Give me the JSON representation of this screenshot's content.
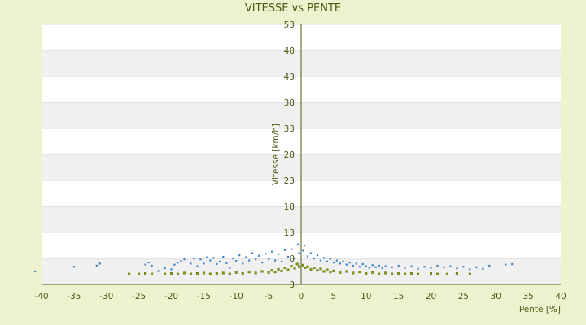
{
  "chart_data": {
    "type": "scatter",
    "title": "VITESSE vs PENTE",
    "xlabel": "Pente [%]",
    "ylabel": "Vitesse [km/h]",
    "xlim": [
      -40,
      40
    ],
    "ylim": [
      3,
      53
    ],
    "xticks": [
      -40,
      -35,
      -30,
      -25,
      -20,
      -15,
      -10,
      -5,
      0,
      5,
      10,
      15,
      20,
      25,
      30,
      35,
      40
    ],
    "yticks": [
      3,
      8,
      13,
      18,
      23,
      28,
      33,
      38,
      43,
      48,
      53
    ],
    "grid": "alternating horizontal bands",
    "legend": "none",
    "colors": {
      "background": "#eef2cf",
      "plot_band_light": "#ffffff",
      "plot_band_dark": "#f0f0f0",
      "axis": "#4d5a12",
      "series_blue": "#3d85c6",
      "series_olive": "#8a9a10",
      "series_olive_stroke": "#5a6400"
    },
    "series": [
      {
        "color": "blue",
        "points": [
          [
            -41,
            5.5
          ],
          [
            -35,
            6.4
          ],
          [
            -31.5,
            6.6
          ],
          [
            -31,
            7.0
          ],
          [
            -24,
            6.8
          ],
          [
            -23.5,
            7.2
          ],
          [
            -23,
            6.6
          ],
          [
            -22,
            5.6
          ],
          [
            -21,
            6.1
          ],
          [
            -20,
            5.9
          ],
          [
            -19.5,
            6.8
          ],
          [
            -19,
            7.2
          ],
          [
            -18.5,
            7.5
          ],
          [
            -18,
            7.8
          ],
          [
            -17,
            7.0
          ],
          [
            -16.5,
            8.0
          ],
          [
            -16,
            6.5
          ],
          [
            -15.5,
            7.8
          ],
          [
            -15,
            7.0
          ],
          [
            -14.5,
            8.2
          ],
          [
            -14,
            7.6
          ],
          [
            -13.5,
            8.1
          ],
          [
            -13,
            6.9
          ],
          [
            -12.5,
            7.4
          ],
          [
            -12,
            8.3
          ],
          [
            -11.5,
            7.1
          ],
          [
            -11,
            6.2
          ],
          [
            -10.5,
            8.0
          ],
          [
            -10,
            7.5
          ],
          [
            -9.5,
            8.6
          ],
          [
            -9,
            7.0
          ],
          [
            -8.5,
            8.2
          ],
          [
            -8,
            7.6
          ],
          [
            -7.5,
            9.0
          ],
          [
            -7,
            7.8
          ],
          [
            -6.5,
            8.5
          ],
          [
            -6,
            7.2
          ],
          [
            -5.5,
            8.9
          ],
          [
            -5,
            7.9
          ],
          [
            -4.5,
            9.3
          ],
          [
            -4,
            7.6
          ],
          [
            -3.5,
            8.8
          ],
          [
            -3,
            7.4
          ],
          [
            -2.5,
            9.6
          ],
          [
            -2,
            8.3
          ],
          [
            -1.5,
            9.8
          ],
          [
            -1,
            8.0
          ],
          [
            -0.5,
            10.7
          ],
          [
            -0.3,
            9.0
          ],
          [
            0.3,
            9.5
          ],
          [
            0.5,
            10.5
          ],
          [
            1,
            8.4
          ],
          [
            1.5,
            9.0
          ],
          [
            2,
            8.0
          ],
          [
            2.5,
            8.6
          ],
          [
            3,
            7.6
          ],
          [
            3.5,
            8.1
          ],
          [
            4,
            7.4
          ],
          [
            4.5,
            7.9
          ],
          [
            5,
            7.2
          ],
          [
            5.5,
            7.6
          ],
          [
            6,
            7.0
          ],
          [
            6.5,
            7.4
          ],
          [
            7,
            6.8
          ],
          [
            7.5,
            7.2
          ],
          [
            8,
            6.6
          ],
          [
            8.5,
            7.0
          ],
          [
            9,
            6.4
          ],
          [
            9.5,
            6.9
          ],
          [
            10,
            6.5
          ],
          [
            10.5,
            6.2
          ],
          [
            11,
            6.7
          ],
          [
            11.5,
            6.3
          ],
          [
            12,
            6.6
          ],
          [
            12.5,
            6.1
          ],
          [
            13,
            6.5
          ],
          [
            14,
            6.3
          ],
          [
            15,
            6.6
          ],
          [
            16,
            6.2
          ],
          [
            17,
            6.5
          ],
          [
            18,
            6.0
          ],
          [
            19,
            6.4
          ],
          [
            20,
            6.2
          ],
          [
            21,
            6.6
          ],
          [
            22,
            6.3
          ],
          [
            23,
            6.5
          ],
          [
            24,
            6.1
          ],
          [
            25,
            6.4
          ],
          [
            26,
            5.9
          ],
          [
            27,
            6.3
          ],
          [
            28,
            6.0
          ],
          [
            29,
            6.6
          ],
          [
            31.5,
            6.8
          ],
          [
            32.5,
            6.9
          ]
        ]
      },
      {
        "color": "olive",
        "points": [
          [
            -26.5,
            5.0
          ],
          [
            -25,
            5.0
          ],
          [
            -24,
            5.1
          ],
          [
            -23,
            5.0
          ],
          [
            -21,
            5.0
          ],
          [
            -20,
            5.1
          ],
          [
            -19,
            5.0
          ],
          [
            -18,
            5.2
          ],
          [
            -17,
            5.0
          ],
          [
            -16,
            5.1
          ],
          [
            -15,
            5.2
          ],
          [
            -14,
            5.0
          ],
          [
            -13,
            5.1
          ],
          [
            -12,
            5.2
          ],
          [
            -11,
            5.0
          ],
          [
            -10,
            5.3
          ],
          [
            -9,
            5.1
          ],
          [
            -8,
            5.4
          ],
          [
            -7,
            5.2
          ],
          [
            -6,
            5.5
          ],
          [
            -5,
            5.3
          ],
          [
            -4.5,
            5.7
          ],
          [
            -4,
            5.4
          ],
          [
            -3.5,
            5.9
          ],
          [
            -3,
            5.6
          ],
          [
            -2.5,
            6.2
          ],
          [
            -2,
            5.8
          ],
          [
            -1.5,
            6.5
          ],
          [
            -1,
            6.1
          ],
          [
            -0.6,
            6.9
          ],
          [
            -0.3,
            6.4
          ],
          [
            0.3,
            6.7
          ],
          [
            0.6,
            6.2
          ],
          [
            1,
            6.4
          ],
          [
            1.5,
            5.9
          ],
          [
            2,
            6.2
          ],
          [
            2.5,
            5.7
          ],
          [
            3,
            6.0
          ],
          [
            3.5,
            5.5
          ],
          [
            4,
            5.8
          ],
          [
            4.5,
            5.4
          ],
          [
            5,
            5.6
          ],
          [
            6,
            5.3
          ],
          [
            7,
            5.5
          ],
          [
            8,
            5.2
          ],
          [
            9,
            5.4
          ],
          [
            10,
            5.1
          ],
          [
            11,
            5.3
          ],
          [
            12,
            5.0
          ],
          [
            13,
            5.2
          ],
          [
            14,
            5.0
          ],
          [
            15,
            5.1
          ],
          [
            16,
            5.0
          ],
          [
            17,
            5.1
          ],
          [
            18,
            5.0
          ],
          [
            20,
            5.1
          ],
          [
            21,
            5.0
          ],
          [
            22.5,
            5.0
          ],
          [
            24,
            5.1
          ],
          [
            26,
            5.0
          ]
        ]
      }
    ]
  }
}
